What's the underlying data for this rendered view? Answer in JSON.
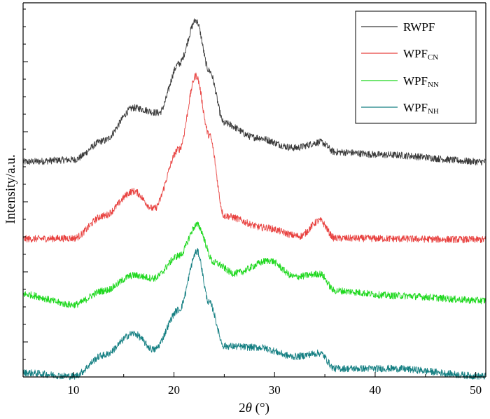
{
  "chart_data": {
    "type": "line",
    "xlabel_prefix": "2",
    "xlabel_var": "θ",
    "xlabel_suffix": " (°)",
    "ylabel": "Intensity/a.u.",
    "xlim": [
      5,
      51
    ],
    "x_ticks": [
      10,
      20,
      30,
      40,
      50
    ],
    "y_tick_labels": false,
    "legend_position": "top-right",
    "series": [
      {
        "name": "RWPF",
        "name_main": "RWPF",
        "name_sub": "",
        "color": "#3a3a3a",
        "peaks": [
          {
            "x": 5,
            "y": 0
          },
          {
            "x": 10,
            "y": 0.3
          },
          {
            "x": 13,
            "y": 3
          },
          {
            "x": 16,
            "y": 7.7
          },
          {
            "x": 18.5,
            "y": 7.0
          },
          {
            "x": 20.5,
            "y": 14
          },
          {
            "x": 22.2,
            "y": 20.2
          },
          {
            "x": 23.5,
            "y": 13
          },
          {
            "x": 25,
            "y": 5.5
          },
          {
            "x": 28,
            "y": 3.5
          },
          {
            "x": 32,
            "y": 2
          },
          {
            "x": 34.6,
            "y": 2.8
          },
          {
            "x": 36,
            "y": 1.4
          },
          {
            "x": 41,
            "y": 1
          },
          {
            "x": 51,
            "y": 0
          }
        ]
      },
      {
        "name": "WPFCN",
        "name_main": "WPF",
        "name_sub": "CN",
        "color": "#e8413f",
        "peaks": [
          {
            "x": 5,
            "y": 0.2
          },
          {
            "x": 10,
            "y": 0.3
          },
          {
            "x": 13,
            "y": 3.5
          },
          {
            "x": 16,
            "y": 7.0
          },
          {
            "x": 18,
            "y": 4.5
          },
          {
            "x": 20.5,
            "y": 13
          },
          {
            "x": 22.2,
            "y": 23.5
          },
          {
            "x": 23.5,
            "y": 15
          },
          {
            "x": 25,
            "y": 3.5
          },
          {
            "x": 29,
            "y": 1.8
          },
          {
            "x": 32.5,
            "y": 0.6
          },
          {
            "x": 34.5,
            "y": 2.8
          },
          {
            "x": 36,
            "y": 0.3
          },
          {
            "x": 51,
            "y": 0.1
          }
        ]
      },
      {
        "name": "WPFNN",
        "name_main": "WPF",
        "name_sub": "NN",
        "color": "#1fd81f",
        "peaks": [
          {
            "x": 5,
            "y": 1.5
          },
          {
            "x": 10,
            "y": 0
          },
          {
            "x": 13,
            "y": 2
          },
          {
            "x": 16,
            "y": 4.2
          },
          {
            "x": 18,
            "y": 3.8
          },
          {
            "x": 20.5,
            "y": 7
          },
          {
            "x": 22.3,
            "y": 11.4
          },
          {
            "x": 24,
            "y": 6
          },
          {
            "x": 26,
            "y": 4.5
          },
          {
            "x": 29.5,
            "y": 6.3
          },
          {
            "x": 32,
            "y": 4
          },
          {
            "x": 34.5,
            "y": 4.4
          },
          {
            "x": 36,
            "y": 2
          },
          {
            "x": 42,
            "y": 1.3
          },
          {
            "x": 51,
            "y": 0.6
          }
        ]
      },
      {
        "name": "WPFNH",
        "name_main": "WPF",
        "name_sub": "NH",
        "color": "#147f82",
        "peaks": [
          {
            "x": 5,
            "y": 0
          },
          {
            "x": 10,
            "y": -0.5
          },
          {
            "x": 13,
            "y": 2.5
          },
          {
            "x": 16,
            "y": 5.6
          },
          {
            "x": 18,
            "y": 3.3
          },
          {
            "x": 20.5,
            "y": 9
          },
          {
            "x": 22.3,
            "y": 17.3
          },
          {
            "x": 23.5,
            "y": 10
          },
          {
            "x": 25,
            "y": 3.8
          },
          {
            "x": 28.5,
            "y": 3.6
          },
          {
            "x": 32,
            "y": 2.3
          },
          {
            "x": 34.5,
            "y": 2.8
          },
          {
            "x": 36,
            "y": 0.6
          },
          {
            "x": 41.5,
            "y": 0.6
          },
          {
            "x": 51,
            "y": -0.5
          }
        ]
      }
    ]
  }
}
